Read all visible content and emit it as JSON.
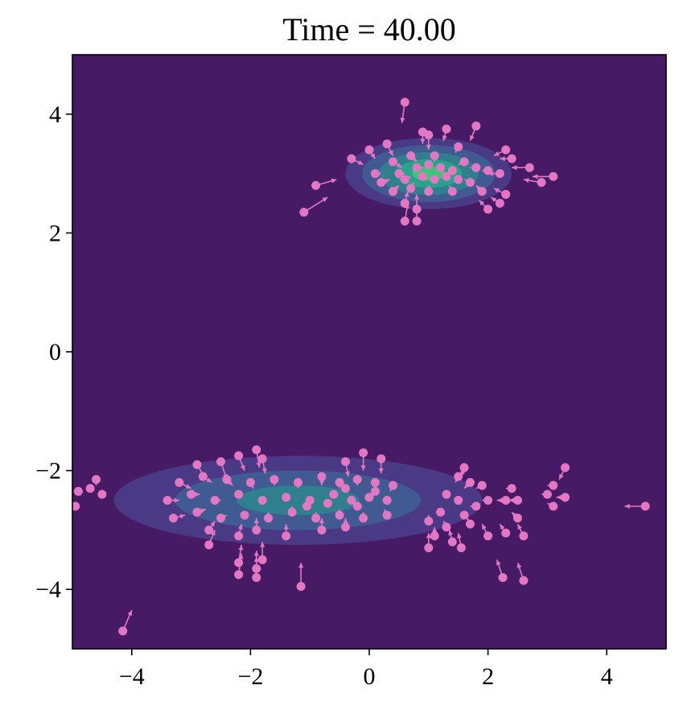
{
  "chart_data": {
    "type": "scatter",
    "title": "Time = 40.00",
    "xlabel": "",
    "ylabel": "",
    "xlim": [
      -5,
      5
    ],
    "ylim": [
      -5,
      5
    ],
    "x_ticks": [
      -4,
      -2,
      0,
      2,
      4
    ],
    "y_ticks": [
      -4,
      -2,
      0,
      2,
      4
    ],
    "x_tick_labels": [
      "−4",
      "−2",
      "0",
      "2",
      "4"
    ],
    "y_tick_labels": [
      "−4",
      "−2",
      "0",
      "2",
      "4"
    ],
    "grid": false,
    "legend": "none",
    "colors": {
      "background": "#471a66",
      "density_levels": [
        "#4a3a86",
        "#3f5b92",
        "#2f7f8f",
        "#27a48a",
        "#3fc47a"
      ],
      "points": "#e377c2"
    },
    "density_blobs": [
      {
        "cx": 1.0,
        "cy": 3.0,
        "rx": 1.4,
        "ry": 0.6,
        "peak": 0.95
      },
      {
        "cx": -1.2,
        "cy": -2.5,
        "rx": 3.1,
        "ry": 0.75,
        "peak": 0.65
      }
    ],
    "points": [
      [
        0.6,
        4.2,
        -0.05,
        -0.35
      ],
      [
        1.8,
        3.8,
        -0.1,
        -0.25
      ],
      [
        1.3,
        3.75,
        -0.05,
        -0.2
      ],
      [
        0.9,
        3.7,
        0,
        -0.2
      ],
      [
        1.0,
        3.65,
        0,
        -0.25
      ],
      [
        2.3,
        3.4,
        -0.2,
        -0.1
      ],
      [
        2.4,
        3.25,
        -0.2,
        0
      ],
      [
        0.3,
        3.5,
        0.1,
        -0.2
      ],
      [
        0.0,
        3.4,
        0.1,
        -0.15
      ],
      [
        -0.3,
        3.25,
        0.2,
        -0.1
      ],
      [
        0.4,
        3.2,
        0.15,
        -0.1
      ],
      [
        0.7,
        3.3,
        0.1,
        -0.1
      ],
      [
        0.8,
        3.1,
        0.1,
        0
      ],
      [
        1.0,
        3.15,
        0.05,
        0
      ],
      [
        1.2,
        3.1,
        0,
        0
      ],
      [
        1.4,
        3.05,
        -0.05,
        0
      ],
      [
        1.6,
        3.2,
        -0.1,
        -0.05
      ],
      [
        1.8,
        3.1,
        -0.1,
        0
      ],
      [
        2.0,
        3.05,
        -0.1,
        0
      ],
      [
        2.2,
        3.0,
        -0.2,
        0
      ],
      [
        0.5,
        3.0,
        0.1,
        0
      ],
      [
        0.6,
        2.9,
        0.1,
        0.05
      ],
      [
        0.9,
        2.95,
        0.05,
        0
      ],
      [
        1.1,
        2.9,
        0,
        0
      ],
      [
        1.3,
        2.95,
        0,
        0
      ],
      [
        1.5,
        2.9,
        -0.05,
        0
      ],
      [
        1.7,
        2.85,
        -0.1,
        0.05
      ],
      [
        0.2,
        2.85,
        0.15,
        0.05
      ],
      [
        0.4,
        2.7,
        0.1,
        0.1
      ],
      [
        0.7,
        2.75,
        0.05,
        0.1
      ],
      [
        1.0,
        2.7,
        0,
        0.1
      ],
      [
        1.4,
        2.7,
        -0.05,
        0.1
      ],
      [
        1.9,
        2.7,
        -0.1,
        0.1
      ],
      [
        2.3,
        2.65,
        -0.2,
        0.1
      ],
      [
        0.6,
        2.5,
        0.05,
        0.2
      ],
      [
        0.8,
        2.4,
        0,
        0.25
      ],
      [
        2.0,
        2.4,
        -0.15,
        0.15
      ],
      [
        2.2,
        2.5,
        -0.15,
        0.1
      ],
      [
        2.7,
        3.1,
        -0.3,
        0
      ],
      [
        2.9,
        2.85,
        -0.3,
        0.05
      ],
      [
        3.1,
        2.95,
        -0.35,
        0
      ],
      [
        0.6,
        2.2,
        0.05,
        0.3
      ],
      [
        0.8,
        2.2,
        0,
        0.3
      ],
      [
        -0.9,
        2.8,
        0.35,
        0.1
      ],
      [
        -1.1,
        2.35,
        0.4,
        0.25
      ],
      [
        0.1,
        3.0,
        0.1,
        0
      ],
      [
        1.1,
        3.3,
        0,
        -0.1
      ],
      [
        1.5,
        3.45,
        -0.05,
        -0.1
      ],
      [
        -1.9,
        -1.65,
        0.05,
        -0.3
      ],
      [
        -2.2,
        -1.75,
        0.1,
        -0.25
      ],
      [
        -2.5,
        -1.85,
        0.1,
        -0.3
      ],
      [
        -2.9,
        -1.9,
        0.15,
        -0.25
      ],
      [
        -1.8,
        -1.8,
        0.05,
        -0.25
      ],
      [
        -0.1,
        -1.7,
        0,
        -0.3
      ],
      [
        -0.4,
        -1.85,
        0.05,
        -0.25
      ],
      [
        0.2,
        -1.8,
        0,
        -0.25
      ],
      [
        -3.2,
        -2.2,
        0.2,
        -0.1
      ],
      [
        -2.8,
        -2.1,
        0.15,
        -0.1
      ],
      [
        -2.4,
        -2.15,
        0.1,
        -0.1
      ],
      [
        -2.0,
        -2.2,
        0.05,
        -0.1
      ],
      [
        -1.6,
        -2.15,
        0,
        -0.1
      ],
      [
        -1.2,
        -2.2,
        0,
        -0.1
      ],
      [
        -0.8,
        -2.1,
        0,
        -0.15
      ],
      [
        -0.5,
        -2.2,
        0,
        -0.1
      ],
      [
        -0.2,
        -2.15,
        0,
        -0.1
      ],
      [
        0.1,
        -2.2,
        0,
        -0.1
      ],
      [
        0.4,
        -2.25,
        -0.05,
        -0.1
      ],
      [
        -3.4,
        -2.5,
        0.2,
        0
      ],
      [
        -3.0,
        -2.4,
        0.15,
        0
      ],
      [
        -2.6,
        -2.5,
        0.1,
        0
      ],
      [
        -2.2,
        -2.4,
        0.05,
        0
      ],
      [
        -1.8,
        -2.5,
        0,
        0
      ],
      [
        -1.4,
        -2.45,
        0,
        0
      ],
      [
        -1.0,
        -2.5,
        0,
        0
      ],
      [
        -0.6,
        -2.4,
        0,
        0
      ],
      [
        -0.3,
        -2.5,
        0,
        0
      ],
      [
        0.0,
        -2.45,
        0,
        0
      ],
      [
        0.3,
        -2.5,
        -0.05,
        0
      ],
      [
        -0.4,
        -2.3,
        0,
        0
      ],
      [
        -0.2,
        -2.6,
        0,
        0
      ],
      [
        0.1,
        -2.35,
        0,
        0
      ],
      [
        -3.3,
        -2.8,
        0.2,
        0.05
      ],
      [
        -2.9,
        -2.7,
        0.15,
        0.05
      ],
      [
        -2.5,
        -2.8,
        0.1,
        0.05
      ],
      [
        -2.1,
        -2.75,
        0.05,
        0.05
      ],
      [
        -1.7,
        -2.8,
        0,
        0.1
      ],
      [
        -1.3,
        -2.7,
        0,
        0.1
      ],
      [
        -0.9,
        -2.8,
        0,
        0.1
      ],
      [
        -0.5,
        -2.75,
        0,
        0.1
      ],
      [
        -0.1,
        -2.8,
        0,
        0.1
      ],
      [
        0.3,
        -2.75,
        -0.05,
        0.1
      ],
      [
        -2.7,
        -3.0,
        0.1,
        0.15
      ],
      [
        -2.2,
        -3.1,
        0.05,
        0.2
      ],
      [
        -1.9,
        -3.0,
        0,
        0.2
      ],
      [
        -0.8,
        -3.0,
        0,
        0.2
      ],
      [
        -0.4,
        -2.95,
        0,
        0.15
      ],
      [
        -2.7,
        -3.25,
        0.1,
        0.25
      ],
      [
        -1.4,
        -3.1,
        0,
        0.2
      ],
      [
        -2.2,
        -3.55,
        0.05,
        0.3
      ],
      [
        -1.8,
        -3.5,
        0,
        0.3
      ],
      [
        -1.9,
        -3.65,
        0,
        0.3
      ],
      [
        -2.2,
        -3.75,
        0.05,
        0.35
      ],
      [
        -1.9,
        -3.8,
        0,
        0.35
      ],
      [
        -1.15,
        -3.95,
        0,
        0.4
      ],
      [
        1.6,
        -1.95,
        -0.05,
        -0.15
      ],
      [
        1.5,
        -2.1,
        -0.05,
        -0.1
      ],
      [
        1.7,
        -2.2,
        -0.1,
        -0.1
      ],
      [
        1.9,
        -2.25,
        -0.1,
        -0.05
      ],
      [
        1.3,
        -2.4,
        -0.05,
        0
      ],
      [
        1.5,
        -2.5,
        -0.05,
        0
      ],
      [
        1.8,
        -2.6,
        -0.1,
        0
      ],
      [
        2.0,
        -2.5,
        -0.1,
        0
      ],
      [
        1.2,
        -2.7,
        -0.05,
        0.05
      ],
      [
        1.6,
        -2.75,
        -0.05,
        0.05
      ],
      [
        1.0,
        -2.85,
        0,
        0.1
      ],
      [
        1.3,
        -2.95,
        -0.05,
        0.1
      ],
      [
        1.7,
        -2.9,
        -0.05,
        0.1
      ],
      [
        1.1,
        -3.1,
        0,
        0.15
      ],
      [
        1.4,
        -3.2,
        -0.05,
        0.2
      ],
      [
        1.0,
        -3.3,
        0,
        0.25
      ],
      [
        1.55,
        -3.3,
        -0.05,
        0.25
      ],
      [
        2.0,
        -3.1,
        -0.1,
        0.2
      ],
      [
        2.3,
        -2.5,
        -0.15,
        0
      ],
      [
        2.5,
        -2.8,
        -0.1,
        0.1
      ],
      [
        2.6,
        -3.1,
        -0.1,
        0.2
      ],
      [
        2.3,
        -3.05,
        -0.1,
        0.15
      ],
      [
        2.25,
        -3.8,
        -0.1,
        0.3
      ],
      [
        2.6,
        -3.85,
        -0.1,
        0.3
      ],
      [
        3.3,
        -1.95,
        -0.1,
        -0.2
      ],
      [
        3.1,
        -2.25,
        -0.1,
        0
      ],
      [
        3.0,
        -2.4,
        -0.1,
        0
      ],
      [
        3.3,
        -2.45,
        -0.15,
        0
      ],
      [
        3.1,
        -2.6,
        -0.1,
        0.05
      ],
      [
        2.5,
        -2.5,
        -0.15,
        0
      ],
      [
        2.4,
        -2.3,
        -0.1,
        0
      ],
      [
        -4.6,
        -2.15,
        0,
        -0.1
      ],
      [
        -4.7,
        -2.3,
        0.05,
        0
      ],
      [
        -4.9,
        -2.35,
        0.05,
        0
      ],
      [
        -4.5,
        -2.4,
        0.05,
        0
      ],
      [
        -4.95,
        -2.6,
        0.05,
        0
      ],
      [
        4.65,
        -2.6,
        -0.35,
        0
      ],
      [
        -4.15,
        -4.7,
        0.15,
        0.35
      ],
      [
        -1.05,
        -2.6,
        0,
        0
      ],
      [
        -0.7,
        -2.55,
        0,
        0
      ]
    ]
  }
}
